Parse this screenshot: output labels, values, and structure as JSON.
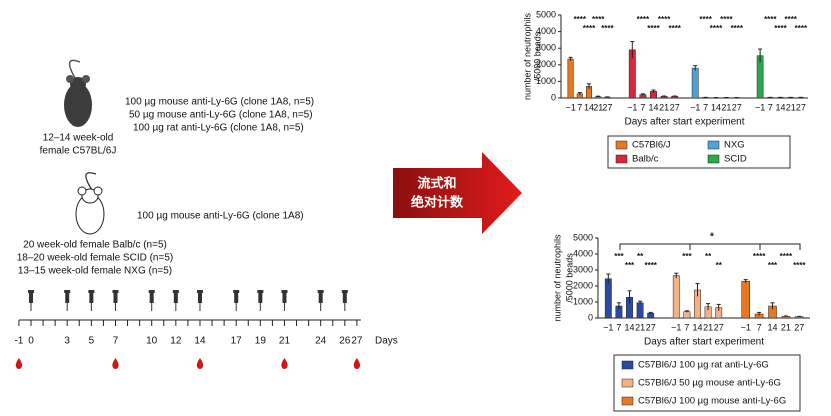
{
  "diagram": {
    "group1": {
      "treatments": [
        "100 µg mouse anti-Ly-6G (clone 1A8, n=5)",
        "50 µg mouse anti-Ly-6G (clone 1A8, n=5)",
        "100 µg rat anti-Ly-6G (clone 1A8, n=5)"
      ],
      "mouse_label": [
        "12–14 week-old",
        "female C57BL/6J"
      ]
    },
    "group2": {
      "treatment": "100 µg mouse anti-Ly-6G (clone 1A8)",
      "mouse_labels": [
        "20 week-old female Balb/c (n=5)",
        "18–20 week-old female SCID (n=5)",
        "13–15 week-old female NXG (n=5)"
      ]
    },
    "timeline": {
      "days": [
        -1,
        0,
        3,
        5,
        7,
        10,
        12,
        14,
        17,
        19,
        21,
        24,
        26,
        27
      ],
      "unit": "Days"
    },
    "arrow_text": [
      "流式和",
      "绝对计数"
    ]
  },
  "chart_data": [
    {
      "type": "bar",
      "ylabel": [
        "number of neutrophils",
        "/5000 beads"
      ],
      "xlabel": "Days after start experiment",
      "categories": [
        "−1",
        "7",
        "14",
        "21",
        "27"
      ],
      "ylim": [
        0,
        5000
      ],
      "yticks": [
        0,
        1000,
        2000,
        3000,
        4000,
        5000
      ],
      "series": [
        {
          "name": "C57Bl6/J",
          "color": "#e87722",
          "values": [
            2350,
            250,
            700,
            80,
            50
          ],
          "errors": [
            100,
            80,
            150,
            30,
            20
          ],
          "significance": [
            null,
            "****",
            "****",
            "****",
            "****"
          ]
        },
        {
          "name": "Balb/c",
          "color": "#d7263d",
          "values": [
            2900,
            200,
            400,
            100,
            100
          ],
          "errors": [
            500,
            50,
            80,
            20,
            20
          ],
          "significance": [
            null,
            "****",
            "****",
            "****",
            "****"
          ]
        },
        {
          "name": "NXG",
          "color": "#4fa3d8",
          "values": [
            1800,
            30,
            20,
            20,
            20
          ],
          "errors": [
            150,
            10,
            10,
            10,
            10
          ],
          "significance": [
            null,
            "****",
            "****",
            "****",
            "****"
          ]
        },
        {
          "name": "SCID",
          "color": "#2aa84a",
          "values": [
            2550,
            30,
            30,
            30,
            30
          ],
          "errors": [
            400,
            10,
            10,
            10,
            10
          ],
          "significance": [
            null,
            "****",
            "****",
            "****",
            "****"
          ]
        }
      ]
    },
    {
      "type": "bar",
      "ylabel": [
        "number of neutrophils",
        "/5000 beads"
      ],
      "xlabel": "Days after start experiment",
      "categories": [
        "−1",
        "7",
        "14",
        "21",
        "27"
      ],
      "ylim": [
        0,
        5000
      ],
      "yticks": [
        0,
        1000,
        2000,
        3000,
        4000,
        5000
      ],
      "bracket_label": "*",
      "series": [
        {
          "name": "C57Bl6/J 100 µg rat anti-Ly-6G",
          "color": "#2b4aa0",
          "values": [
            2450,
            750,
            1300,
            950,
            300
          ],
          "errors": [
            300,
            200,
            400,
            100,
            50
          ],
          "significance": [
            null,
            "***",
            "***",
            "**",
            "****"
          ]
        },
        {
          "name": "C57Bl6/J 50 µg mouse anti-Ly-6G",
          "color": "#f4b183",
          "values": [
            2650,
            400,
            1750,
            700,
            650
          ],
          "errors": [
            150,
            50,
            400,
            200,
            200
          ],
          "significance": [
            null,
            "***",
            null,
            "**",
            "**"
          ]
        },
        {
          "name": "C57Bl6/J 100 µg mouse anti-Ly-6G",
          "color": "#e87722",
          "values": [
            2300,
            250,
            750,
            100,
            80
          ],
          "errors": [
            100,
            100,
            200,
            30,
            20
          ],
          "significance": [
            null,
            "****",
            "***",
            "****",
            "****"
          ]
        }
      ]
    }
  ]
}
